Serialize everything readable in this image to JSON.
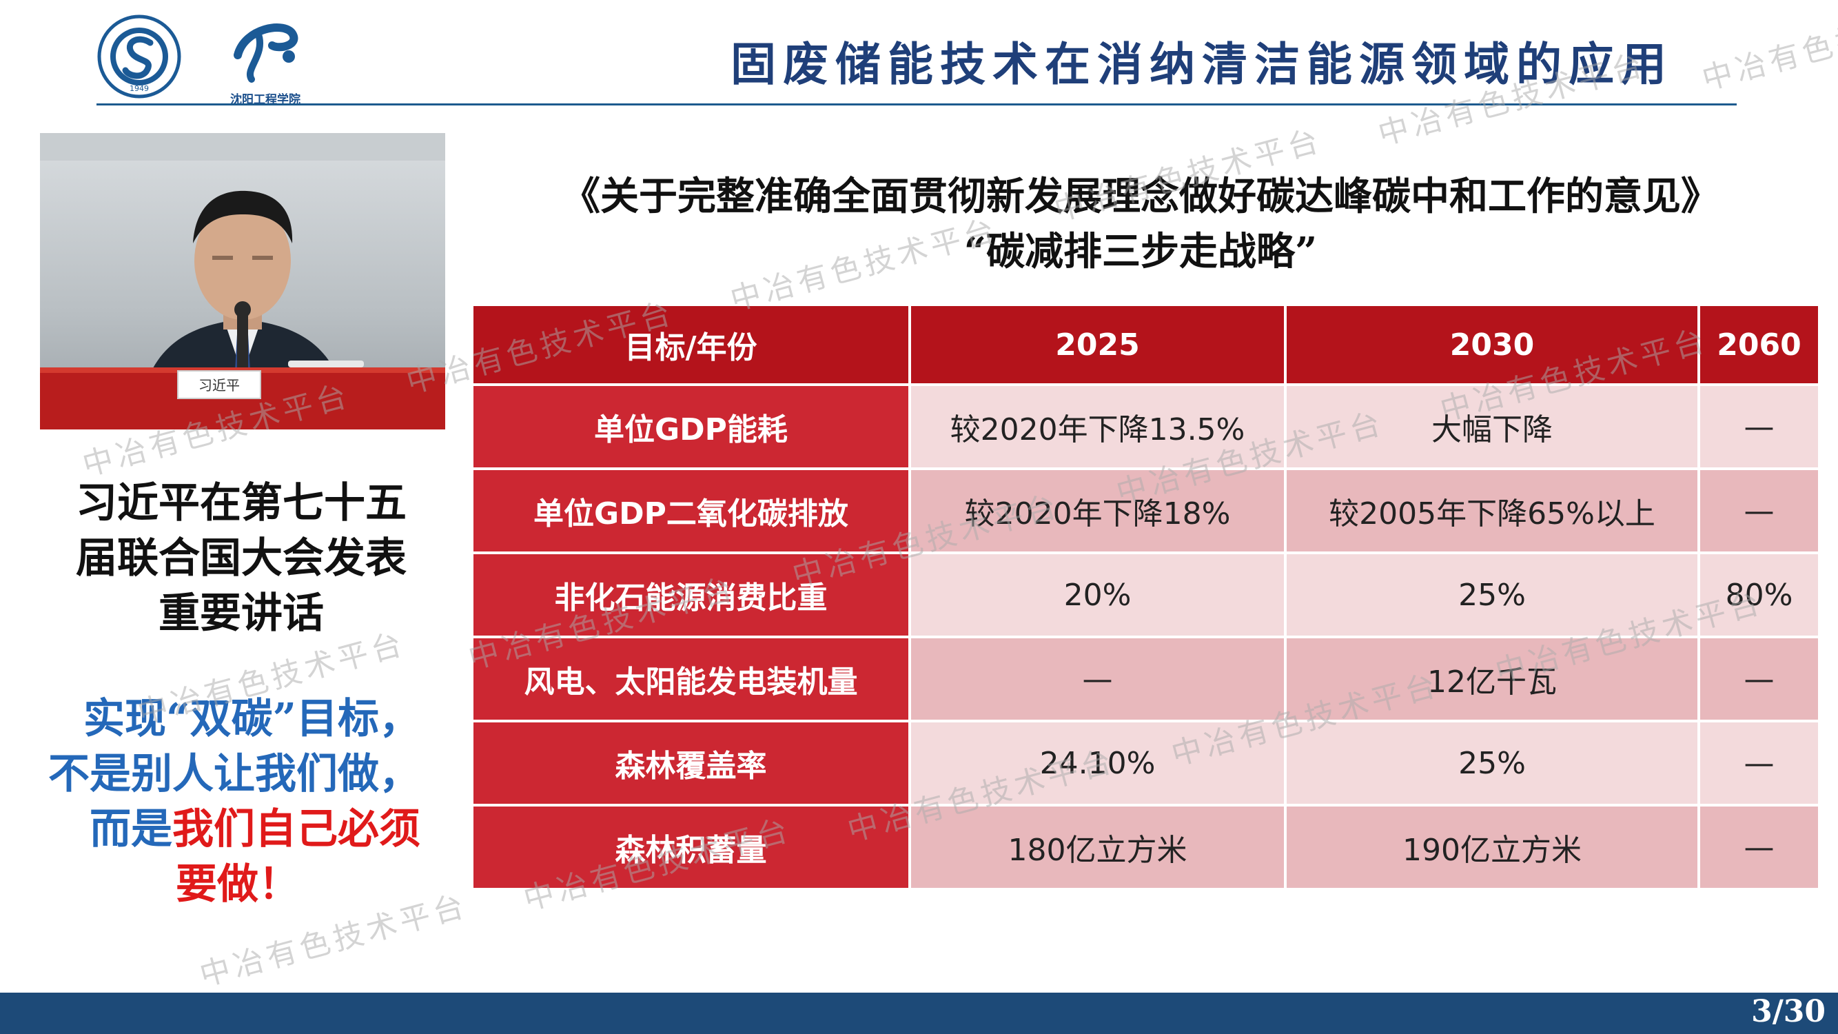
{
  "header": {
    "title": "固废储能技术在消纳清洁能源领域的应用",
    "logo1_text": "1949",
    "logo2_text": "沈阳工程学院"
  },
  "photo": {
    "nameplate": "习近平"
  },
  "caption": {
    "lines": [
      "习近平在第七十五",
      "届联合国大会发表",
      "重要讲话"
    ]
  },
  "quote": {
    "line1": "实现“双碳”目标，",
    "line2": "不是别人让我们做，",
    "line3_prefix": "而是",
    "line3_highlight": "我们自己必须",
    "line4": "要做！"
  },
  "doc": {
    "title": "《关于完整准确全面贯彻新发展理念做好碳达峰碳中和工作的意见》",
    "subtitle": "“碳减排三步走战略”"
  },
  "table": {
    "headers": [
      "目标/年份",
      "2025",
      "2030",
      "2060"
    ],
    "rows": [
      {
        "label": "单位GDP能耗",
        "c2025": "较2020年下降13.5%",
        "c2030": "大幅下降",
        "c2060": "—"
      },
      {
        "label": "单位GDP二氧化碳排放",
        "c2025": "较2020年下降18%",
        "c2030": "较2005年下降65%以上",
        "c2060": "—"
      },
      {
        "label": "非化石能源消费比重",
        "c2025": "20%",
        "c2030": "25%",
        "c2060": "80%"
      },
      {
        "label": "风电、太阳能发电装机量",
        "c2025": "—",
        "c2030": "12亿千瓦",
        "c2060": "—"
      },
      {
        "label": "森林覆盖率",
        "c2025": "24.10%",
        "c2030": "25%",
        "c2060": "—"
      },
      {
        "label": "森林积蓄量",
        "c2025": "180亿立方米",
        "c2030": "190亿立方米",
        "c2060": "—"
      }
    ]
  },
  "watermark": "中冶有色技术平台",
  "footer": {
    "page": "3/30"
  },
  "colors": {
    "title_blue": "#1f3f79",
    "header_red": "#b4131b",
    "label_red": "#cc2732",
    "cell_light": "#f3dadc",
    "cell_dark": "#e8b8bc",
    "footer_blue": "#1d4a78",
    "quote_blue": "#2468b9",
    "quote_red": "#e01a1a"
  }
}
